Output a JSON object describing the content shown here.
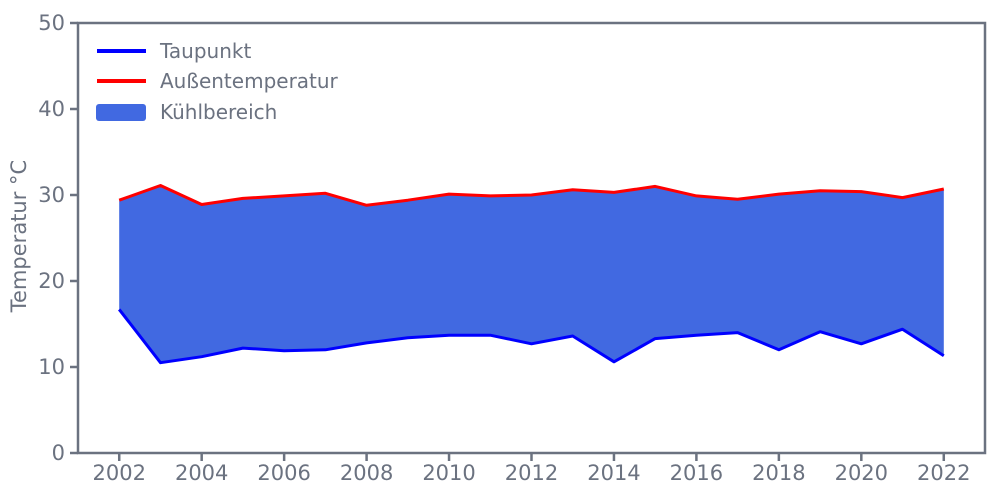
{
  "chart_data": {
    "type": "area",
    "title": "",
    "xlabel": "",
    "ylabel": "Temperatur °C",
    "x": [
      2002,
      2003,
      2004,
      2005,
      2006,
      2007,
      2008,
      2009,
      2010,
      2011,
      2012,
      2013,
      2014,
      2015,
      2016,
      2017,
      2018,
      2019,
      2020,
      2021,
      2022
    ],
    "series": [
      {
        "name": "Taupunkt",
        "color": "#0000ff",
        "values": [
          16.7,
          10.5,
          11.2,
          12.2,
          11.9,
          12.0,
          12.8,
          13.4,
          13.7,
          13.7,
          12.7,
          13.6,
          10.6,
          13.3,
          13.7,
          14.0,
          12.0,
          14.1,
          12.7,
          14.4,
          11.3
        ]
      },
      {
        "name": "Außentemperatur",
        "color": "#ff0000",
        "values": [
          29.4,
          31.1,
          28.9,
          29.6,
          29.9,
          30.2,
          28.8,
          29.4,
          30.1,
          29.9,
          30.0,
          30.6,
          30.3,
          31.0,
          29.9,
          29.5,
          30.1,
          30.5,
          30.4,
          29.7,
          30.7
        ]
      }
    ],
    "fill_between": {
      "name": "Kühlbereich",
      "color": "#4169e1",
      "lower_series": "Taupunkt",
      "upper_series": "Außentemperatur"
    },
    "xlim": [
      2001,
      2023
    ],
    "ylim": [
      0,
      50
    ],
    "xticks": [
      2002,
      2004,
      2006,
      2008,
      2010,
      2012,
      2014,
      2016,
      2018,
      2020,
      2022
    ],
    "yticks": [
      0,
      10,
      20,
      30,
      40,
      50
    ],
    "grid": false,
    "legend_position": "upper-left",
    "axis_color": "#6b7280"
  }
}
